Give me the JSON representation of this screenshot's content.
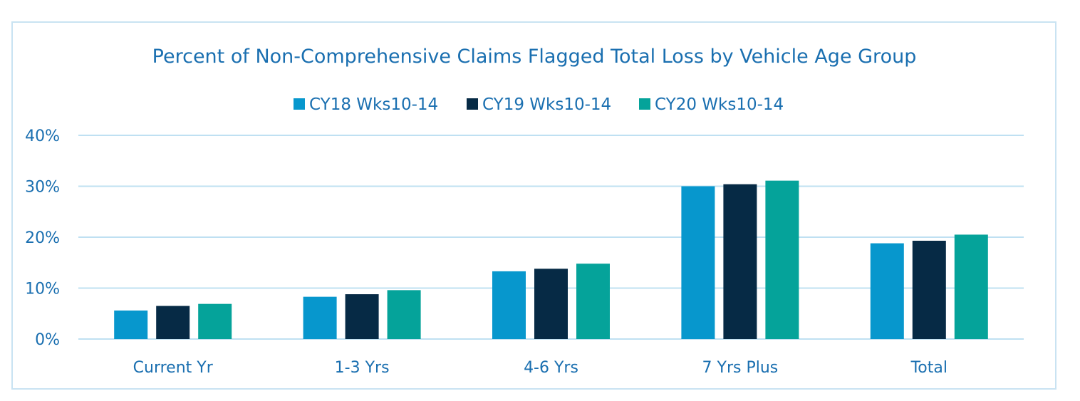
{
  "chart_data": {
    "type": "bar",
    "title": "Percent of Non-Comprehensive Claims Flagged Total Loss by Vehicle Age Group",
    "xlabel": "",
    "ylabel": "",
    "categories": [
      "Current Yr",
      "1-3 Yrs",
      "4-6 Yrs",
      "7 Yrs Plus",
      "Total"
    ],
    "series": [
      {
        "name": "CY18 Wks10-14",
        "color": "#0797cd",
        "values": [
          5.6,
          8.3,
          13.3,
          30.0,
          18.8
        ]
      },
      {
        "name": "CY19 Wks10-14",
        "color": "#062a45",
        "values": [
          6.5,
          8.8,
          13.8,
          30.4,
          19.3
        ]
      },
      {
        "name": "CY20 Wks10-14",
        "color": "#05a39a",
        "values": [
          6.9,
          9.6,
          14.8,
          31.1,
          20.5
        ]
      }
    ],
    "ylim": [
      0,
      40
    ],
    "yticks": [
      "0%",
      "10%",
      "20%",
      "30%",
      "40%"
    ],
    "grid": true,
    "legend_position": "top-center"
  }
}
